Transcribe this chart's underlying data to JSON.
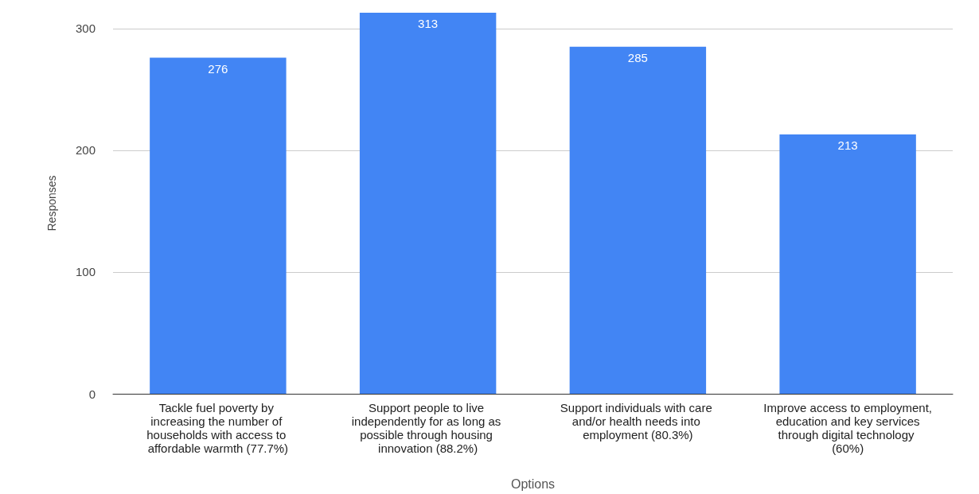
{
  "chart_data": {
    "type": "bar",
    "xlabel": "Options",
    "ylabel": "Responses",
    "categories": [
      "Tackle fuel poverty by increasing the number of households with access to affordable warmth (77.7%)",
      "Support people to live independently for as long as possible through housing innovation (88.2%)",
      "Support individuals with care and/or health needs into employment (80.3%)",
      "Improve access to employment, education and key services through digital technology (60%)"
    ],
    "values": [
      276,
      313,
      285,
      213
    ],
    "color": "#4285f4",
    "ylim": [
      0,
      313
    ],
    "yticks": [
      0,
      100,
      200,
      300
    ],
    "grid": "y",
    "data_labels": true
  }
}
